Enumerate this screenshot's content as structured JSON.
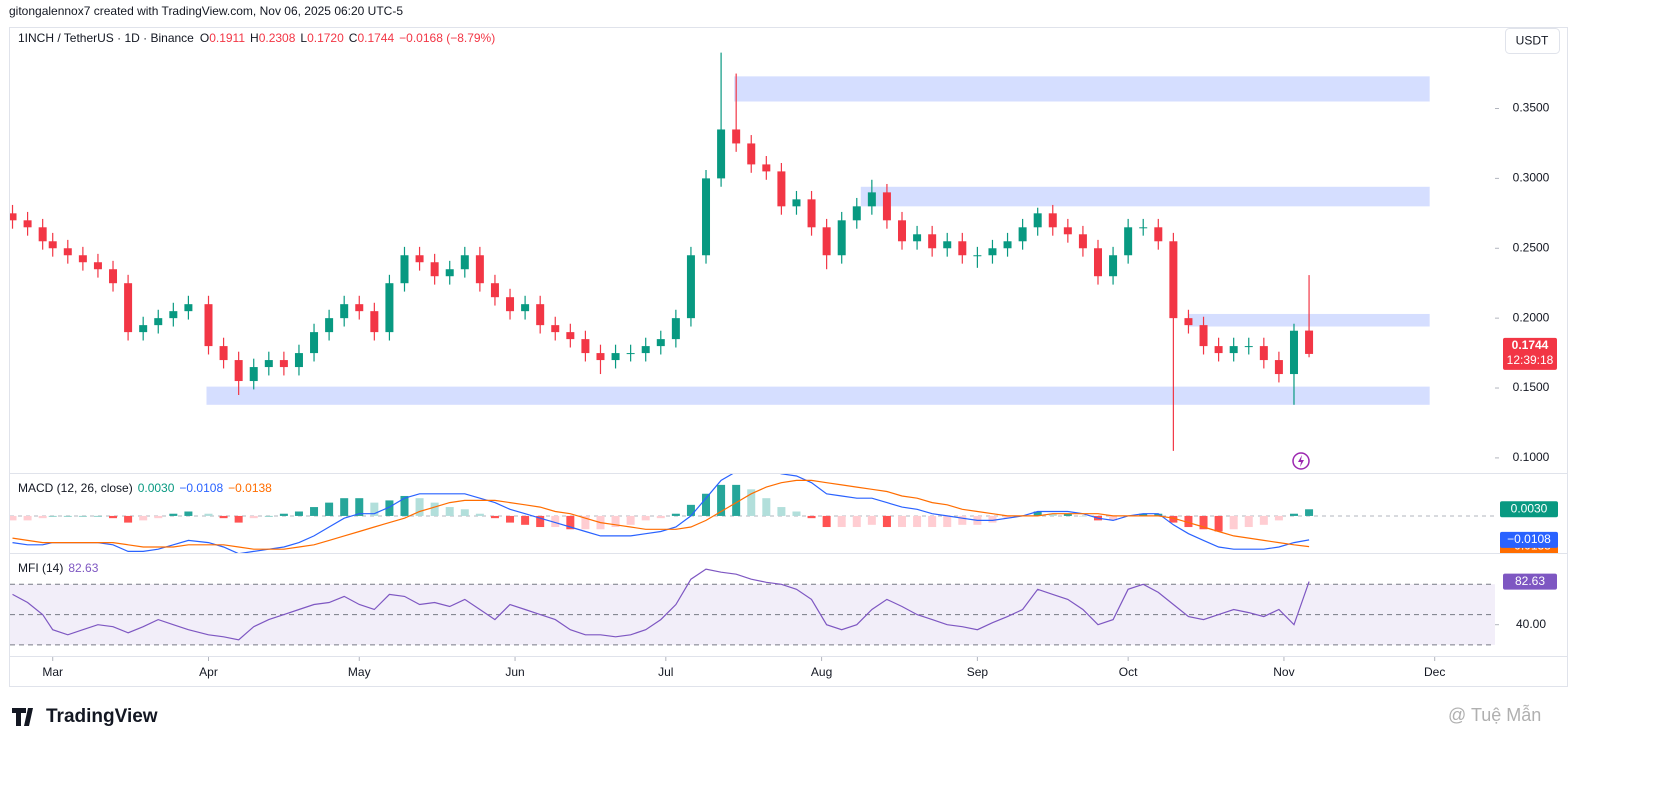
{
  "header": {
    "author_line": "gitongalennox7 created with TradingView.com, Nov 06, 2025 06:20 UTC-5",
    "symbol": "1INCH / TetherUS · 1D · Binance",
    "ohlc": [
      [
        "O",
        "0.1911"
      ],
      [
        "H",
        "0.2308"
      ],
      [
        "L",
        "0.1720"
      ],
      [
        "C",
        "0.1744"
      ]
    ],
    "change": "−0.0168 (−8.79%)",
    "currency": "USDT",
    "price_label": "0.1744",
    "countdown": "12:39:18"
  },
  "chart_data": [
    {
      "type": "candlestick",
      "up_color": "#089981",
      "down_color": "#f23645",
      "zone_color": "#c7d3ff",
      "xlim": [
        -8.5,
        287
      ],
      "xticks": [
        {
          "value": 0,
          "label": "Mar"
        },
        {
          "value": 31,
          "label": "Apr"
        },
        {
          "value": 61,
          "label": "May"
        },
        {
          "value": 92,
          "label": "Jun"
        },
        {
          "value": 122,
          "label": "Jul"
        },
        {
          "value": 153,
          "label": "Aug"
        },
        {
          "value": 184,
          "label": "Sep"
        },
        {
          "value": 214,
          "label": "Oct"
        },
        {
          "value": 245,
          "label": "Nov"
        },
        {
          "value": 275,
          "label": "Dec"
        }
      ],
      "ylim": [
        0.0892,
        0.4076
      ],
      "yticks": [
        {
          "value": 0.1,
          "label": "0.1000"
        },
        {
          "value": 0.15,
          "label": "0.1500"
        },
        {
          "value": 0.2,
          "label": "0.2000"
        },
        {
          "value": 0.25,
          "label": "0.2500"
        },
        {
          "value": 0.3,
          "label": "0.3000"
        },
        {
          "value": 0.35,
          "label": "0.3500"
        }
      ],
      "zones": [
        {
          "x0": 135.6,
          "x1": 274,
          "low": 0.355,
          "high": 0.373
        },
        {
          "x0": 160.8,
          "x1": 274,
          "low": 0.28,
          "high": 0.294
        },
        {
          "x0": 226,
          "x1": 274,
          "low": 0.194,
          "high": 0.203
        },
        {
          "x0": 30.6,
          "x1": 274,
          "low": 0.138,
          "high": 0.151
        }
      ],
      "x": [
        -8,
        -5,
        -2,
        0,
        3,
        6,
        9,
        12,
        15,
        18,
        21,
        24,
        27,
        31,
        34,
        37,
        40,
        43,
        46,
        49,
        52,
        55,
        58,
        61,
        64,
        67,
        70,
        73,
        76,
        79,
        82,
        85,
        88,
        91,
        94,
        97,
        100,
        103,
        106,
        109,
        112,
        115,
        118,
        121,
        124,
        127,
        130,
        133,
        136,
        139,
        142,
        145,
        148,
        151,
        154,
        157,
        160,
        163,
        166,
        169,
        172,
        175,
        178,
        181,
        184,
        187,
        190,
        193,
        196,
        199,
        202,
        205,
        208,
        211,
        214,
        217,
        220,
        223,
        226,
        229,
        232,
        235,
        238,
        241,
        244,
        247,
        250
      ],
      "candles": [
        [
          0.275,
          0.281,
          0.264,
          0.27
        ],
        [
          0.27,
          0.276,
          0.259,
          0.265
        ],
        [
          0.265,
          0.271,
          0.249,
          0.255
        ],
        [
          0.255,
          0.261,
          0.244,
          0.25
        ],
        [
          0.25,
          0.256,
          0.239,
          0.245
        ],
        [
          0.245,
          0.251,
          0.234,
          0.24
        ],
        [
          0.24,
          0.246,
          0.229,
          0.235
        ],
        [
          0.235,
          0.241,
          0.219,
          0.225
        ],
        [
          0.225,
          0.231,
          0.184,
          0.19
        ],
        [
          0.19,
          0.201,
          0.184,
          0.195
        ],
        [
          0.195,
          0.206,
          0.189,
          0.2
        ],
        [
          0.2,
          0.211,
          0.194,
          0.205
        ],
        [
          0.205,
          0.216,
          0.199,
          0.21
        ],
        [
          0.21,
          0.216,
          0.174,
          0.18
        ],
        [
          0.18,
          0.186,
          0.164,
          0.17
        ],
        [
          0.17,
          0.176,
          0.145,
          0.155
        ],
        [
          0.155,
          0.171,
          0.149,
          0.165
        ],
        [
          0.165,
          0.176,
          0.159,
          0.17
        ],
        [
          0.17,
          0.176,
          0.159,
          0.165
        ],
        [
          0.165,
          0.181,
          0.159,
          0.175
        ],
        [
          0.175,
          0.196,
          0.169,
          0.19
        ],
        [
          0.19,
          0.206,
          0.184,
          0.2
        ],
        [
          0.2,
          0.216,
          0.194,
          0.21
        ],
        [
          0.21,
          0.216,
          0.199,
          0.205
        ],
        [
          0.205,
          0.211,
          0.184,
          0.19
        ],
        [
          0.19,
          0.231,
          0.184,
          0.225
        ],
        [
          0.225,
          0.251,
          0.219,
          0.245
        ],
        [
          0.245,
          0.251,
          0.234,
          0.24
        ],
        [
          0.24,
          0.246,
          0.224,
          0.23
        ],
        [
          0.23,
          0.241,
          0.224,
          0.235
        ],
        [
          0.235,
          0.251,
          0.229,
          0.245
        ],
        [
          0.245,
          0.251,
          0.219,
          0.225
        ],
        [
          0.225,
          0.231,
          0.209,
          0.215
        ],
        [
          0.215,
          0.221,
          0.199,
          0.205
        ],
        [
          0.205,
          0.216,
          0.199,
          0.21
        ],
        [
          0.21,
          0.216,
          0.189,
          0.195
        ],
        [
          0.195,
          0.201,
          0.184,
          0.19
        ],
        [
          0.19,
          0.196,
          0.179,
          0.185
        ],
        [
          0.185,
          0.191,
          0.169,
          0.175
        ],
        [
          0.175,
          0.181,
          0.16,
          0.17
        ],
        [
          0.17,
          0.181,
          0.164,
          0.175
        ],
        [
          0.175,
          0.181,
          0.169,
          0.175
        ],
        [
          0.175,
          0.186,
          0.169,
          0.18
        ],
        [
          0.18,
          0.191,
          0.174,
          0.185
        ],
        [
          0.185,
          0.206,
          0.179,
          0.2
        ],
        [
          0.2,
          0.251,
          0.194,
          0.245
        ],
        [
          0.245,
          0.306,
          0.239,
          0.3
        ],
        [
          0.3,
          0.39,
          0.294,
          0.335
        ],
        [
          0.335,
          0.375,
          0.319,
          0.325
        ],
        [
          0.325,
          0.331,
          0.304,
          0.31
        ],
        [
          0.31,
          0.316,
          0.299,
          0.305
        ],
        [
          0.305,
          0.311,
          0.274,
          0.28
        ],
        [
          0.28,
          0.291,
          0.274,
          0.285
        ],
        [
          0.285,
          0.291,
          0.259,
          0.265
        ],
        [
          0.265,
          0.271,
          0.235,
          0.245
        ],
        [
          0.245,
          0.276,
          0.239,
          0.27
        ],
        [
          0.27,
          0.286,
          0.264,
          0.28
        ],
        [
          0.28,
          0.299,
          0.274,
          0.29
        ],
        [
          0.29,
          0.296,
          0.264,
          0.27
        ],
        [
          0.27,
          0.276,
          0.249,
          0.255
        ],
        [
          0.255,
          0.266,
          0.249,
          0.26
        ],
        [
          0.26,
          0.266,
          0.244,
          0.25
        ],
        [
          0.25,
          0.261,
          0.244,
          0.255
        ],
        [
          0.255,
          0.261,
          0.239,
          0.245
        ],
        [
          0.245,
          0.251,
          0.236,
          0.245
        ],
        [
          0.245,
          0.256,
          0.239,
          0.25
        ],
        [
          0.25,
          0.261,
          0.244,
          0.255
        ],
        [
          0.255,
          0.271,
          0.249,
          0.265
        ],
        [
          0.265,
          0.279,
          0.259,
          0.275
        ],
        [
          0.275,
          0.281,
          0.259,
          0.265
        ],
        [
          0.265,
          0.271,
          0.254,
          0.26
        ],
        [
          0.26,
          0.266,
          0.244,
          0.25
        ],
        [
          0.25,
          0.256,
          0.224,
          0.23
        ],
        [
          0.23,
          0.251,
          0.224,
          0.245
        ],
        [
          0.245,
          0.271,
          0.239,
          0.265
        ],
        [
          0.265,
          0.271,
          0.259,
          0.265
        ],
        [
          0.265,
          0.271,
          0.249,
          0.255
        ],
        [
          0.255,
          0.261,
          0.105,
          0.2
        ],
        [
          0.2,
          0.206,
          0.189,
          0.195
        ],
        [
          0.195,
          0.201,
          0.174,
          0.18
        ],
        [
          0.18,
          0.186,
          0.169,
          0.175
        ],
        [
          0.175,
          0.186,
          0.169,
          0.18
        ],
        [
          0.18,
          0.186,
          0.174,
          0.18
        ],
        [
          0.18,
          0.186,
          0.164,
          0.17
        ],
        [
          0.17,
          0.176,
          0.154,
          0.16
        ],
        [
          0.16,
          0.196,
          0.138,
          0.191
        ],
        [
          0.1911,
          0.2308,
          0.172,
          0.1744
        ]
      ]
    },
    {
      "type": "macd",
      "title": "MACD (12, 26, close)",
      "value_labels": [
        "0.0030",
        "−0.0108",
        "−0.0138"
      ],
      "hist_color": "#089981",
      "macd_color": "#2962ff",
      "signal_color": "#ff6d00",
      "ylim": [
        -0.0167,
        0.0189
      ],
      "histogram": [
        -0.002,
        -0.002,
        -0.001,
        0,
        0,
        0,
        0,
        -0.001,
        -0.003,
        -0.002,
        -0.001,
        0.001,
        0.002,
        0.001,
        -0.001,
        -0.003,
        -0.001,
        0,
        0.001,
        0.002,
        0.004,
        0.006,
        0.008,
        0.008,
        0.006,
        0.007,
        0.009,
        0.008,
        0.006,
        0.004,
        0.003,
        0.001,
        -0.001,
        -0.003,
        -0.004,
        -0.005,
        -0.005,
        -0.006,
        -0.006,
        -0.006,
        -0.005,
        -0.004,
        -0.002,
        -0.001,
        0.001,
        0.005,
        0.01,
        0.014,
        0.014,
        0.012,
        0.008,
        0.004,
        0.002,
        -0.001,
        -0.005,
        -0.005,
        -0.005,
        -0.004,
        -0.005,
        -0.005,
        -0.005,
        -0.005,
        -0.005,
        -0.004,
        -0.004,
        -0.003,
        -0.001,
        0,
        0.002,
        0.001,
        0.001,
        0,
        -0.002,
        -0.002,
        0,
        0.001,
        0.001,
        -0.003,
        -0.005,
        -0.006,
        -0.007,
        -0.006,
        -0.005,
        -0.004,
        -0.002,
        0.001,
        0.003
      ],
      "macd_line": [
        -0.012,
        -0.013,
        -0.013,
        -0.012,
        -0.012,
        -0.012,
        -0.012,
        -0.013,
        -0.016,
        -0.016,
        -0.015,
        -0.013,
        -0.011,
        -0.012,
        -0.014,
        -0.017,
        -0.016,
        -0.015,
        -0.014,
        -0.012,
        -0.009,
        -0.005,
        -0.001,
        0.001,
        0.001,
        0.004,
        0.008,
        0.01,
        0.01,
        0.01,
        0.01,
        0.008,
        0.006,
        0.003,
        0.001,
        -0.001,
        -0.003,
        -0.005,
        -0.007,
        -0.009,
        -0.009,
        -0.009,
        -0.008,
        -0.007,
        -0.005,
        0,
        0.008,
        0.016,
        0.02,
        0.022,
        0.021,
        0.019,
        0.018,
        0.015,
        0.01,
        0.009,
        0.008,
        0.008,
        0.006,
        0.004,
        0.003,
        0.001,
        0,
        -0.001,
        -0.002,
        -0.002,
        -0.001,
        0,
        0.002,
        0.002,
        0.002,
        0.001,
        -0.001,
        -0.002,
        0,
        0.001,
        0.001,
        -0.004,
        -0.008,
        -0.011,
        -0.014,
        -0.015,
        -0.015,
        -0.015,
        -0.014,
        -0.012,
        -0.0108
      ],
      "signal_line": [
        -0.01,
        -0.011,
        -0.012,
        -0.012,
        -0.012,
        -0.012,
        -0.012,
        -0.012,
        -0.013,
        -0.014,
        -0.014,
        -0.014,
        -0.013,
        -0.013,
        -0.013,
        -0.014,
        -0.015,
        -0.015,
        -0.015,
        -0.014,
        -0.013,
        -0.011,
        -0.009,
        -0.007,
        -0.005,
        -0.003,
        -0.001,
        0.002,
        0.004,
        0.006,
        0.007,
        0.007,
        0.007,
        0.006,
        0.005,
        0.004,
        0.002,
        0.001,
        -0.001,
        -0.003,
        -0.004,
        -0.005,
        -0.006,
        -0.006,
        -0.006,
        -0.005,
        -0.002,
        0.002,
        0.006,
        0.01,
        0.013,
        0.015,
        0.016,
        0.016,
        0.015,
        0.014,
        0.013,
        0.012,
        0.011,
        0.009,
        0.008,
        0.006,
        0.005,
        0.003,
        0.002,
        0.001,
        0,
        0,
        0,
        0.001,
        0.001,
        0.001,
        0.001,
        0,
        0,
        0,
        0,
        -0.001,
        -0.003,
        -0.005,
        -0.007,
        -0.009,
        -0.01,
        -0.011,
        -0.012,
        -0.013,
        -0.0138
      ]
    },
    {
      "type": "line",
      "title": "MFI (14)",
      "color": "#7e57c2",
      "ylim": [
        9,
        109
      ],
      "yticks": [
        {
          "value": 40,
          "label": "40.00"
        }
      ],
      "bands": [
        20,
        50,
        80
      ],
      "values": [
        70,
        62,
        50,
        35,
        30,
        35,
        40,
        38,
        32,
        38,
        45,
        40,
        35,
        30,
        28,
        25,
        38,
        45,
        50,
        55,
        60,
        62,
        68,
        60,
        55,
        70,
        68,
        60,
        62,
        58,
        65,
        55,
        45,
        60,
        55,
        50,
        45,
        35,
        30,
        30,
        28,
        30,
        35,
        45,
        60,
        85,
        95,
        92,
        90,
        85,
        82,
        80,
        75,
        65,
        40,
        35,
        40,
        55,
        65,
        58,
        50,
        45,
        40,
        38,
        35,
        42,
        48,
        55,
        75,
        70,
        65,
        55,
        40,
        45,
        75,
        80,
        72,
        60,
        48,
        45,
        50,
        55,
        52,
        48,
        55,
        40,
        82.63
      ]
    }
  ],
  "footer": {
    "logo": "TradingView",
    "watermark": "@ Tuệ Mẫn"
  }
}
